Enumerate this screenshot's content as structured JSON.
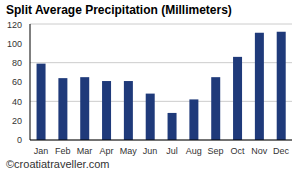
{
  "chart_data": {
    "type": "bar",
    "title": "Split Average Precipitation (Millimeters)",
    "categories": [
      "Jan",
      "Feb",
      "Mar",
      "Apr",
      "May",
      "Jun",
      "Jul",
      "Aug",
      "Sep",
      "Oct",
      "Nov",
      "Dec"
    ],
    "values": [
      79,
      64,
      65,
      61,
      61,
      48,
      28,
      42,
      65,
      86,
      111,
      112
    ],
    "color": "#1f3a7a",
    "ylim": [
      0,
      120
    ],
    "yticks": [
      0,
      20,
      40,
      60,
      80,
      100,
      120
    ],
    "grid": true,
    "annotation": "©croatiatraveller.com"
  }
}
